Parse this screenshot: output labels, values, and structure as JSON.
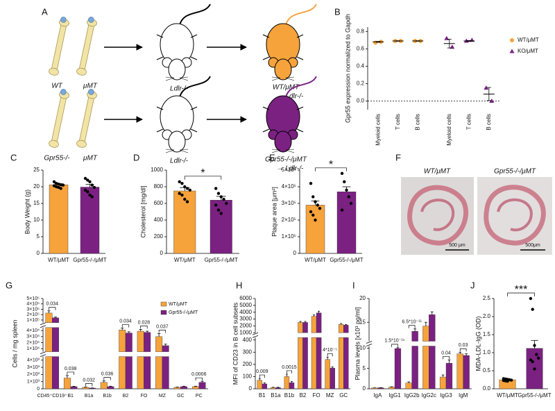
{
  "figure_a": {
    "panel": "A",
    "rows": [
      {
        "donors": [
          "WT",
          "μMT"
        ],
        "recipient": "Ldlr-/-",
        "chimera": "WT/μMT",
        "chimera_recipient": "→ Ldlr-/-",
        "chimera_color": "#f6a33c"
      },
      {
        "donors": [
          "Gpr55-/-",
          "μMT"
        ],
        "recipient": "Ldlr-/-",
        "chimera": "Gpr55-/-/μMT",
        "chimera_recipient": "→ Ldlr-/-",
        "chimera_color": "#7b2182"
      }
    ]
  },
  "figure_f": {
    "panel": "F",
    "images": [
      {
        "title": "WT/μMT",
        "scale_bar": "500 μm"
      },
      {
        "title": "Gpr55-/-/μMT",
        "scale_bar": "500μm"
      }
    ]
  },
  "chart_data": [
    {
      "type": "dot",
      "panel": "B",
      "ylabel": "Gpr55 expression normalized to Gapdh",
      "categories": [
        "Myeloid cells",
        "T cells",
        "B cells",
        "Myeloid cells",
        "T cells",
        "B cells"
      ],
      "ylim": [
        -0.1,
        0.85
      ],
      "yticks": [
        {
          "value": 0,
          "label": "0.0"
        },
        0.2,
        0.4,
        0.6,
        0.8
      ],
      "hline": 0,
      "series": [
        {
          "name": "WT/μMT",
          "color": "#f6a33c",
          "marker": "circle",
          "values": [
            0.68,
            0.69,
            0.69,
            null,
            null,
            null
          ],
          "errors": [
            0.005,
            0.003,
            0.003,
            null,
            null,
            null
          ],
          "points": [
            [
              0.67,
              0.68
            ],
            [
              0.69,
              0.69
            ],
            [
              0.69,
              0.69
            ],
            null,
            null,
            null
          ]
        },
        {
          "name": "KO/μMT",
          "color": "#7b2182",
          "marker": "triangle",
          "values": [
            null,
            null,
            null,
            0.66,
            0.69,
            0.08
          ],
          "errors": [
            null,
            null,
            null,
            0.05,
            0.005,
            0.075
          ],
          "points": [
            null,
            null,
            null,
            [
              0.72,
              0.62
            ],
            [
              0.69,
              0.7
            ],
            [
              0.15,
              0.0
            ]
          ]
        }
      ]
    },
    {
      "type": "bar",
      "panel": "C",
      "ylabel": "Body Weight (g)",
      "categories": [
        "WT/μMT",
        "Gpr55-/-/μMT"
      ],
      "colors": [
        "#f6a33c",
        "#7b2182"
      ],
      "values": [
        20.6,
        19.9
      ],
      "errors": [
        0.3,
        0.8
      ],
      "points": [
        [
          21.5,
          21.0,
          20.8,
          20.6,
          20.5,
          20.3,
          20.0,
          19.8,
          19.5
        ],
        [
          22.5,
          22.0,
          21.5,
          20.5,
          19.8,
          19.0,
          18.5,
          17.5,
          17.0
        ]
      ],
      "ylim": [
        0,
        25
      ],
      "yticks": [
        0,
        5,
        10,
        15,
        20,
        25
      ]
    },
    {
      "type": "bar",
      "panel": "D",
      "ylabel": "Cholesterol [mg/dl]",
      "categories": [
        "WT/μMT",
        "Gpr55-/-/μMT"
      ],
      "colors": [
        "#f6a33c",
        "#7b2182"
      ],
      "values": [
        750,
        640
      ],
      "errors": [
        40,
        45
      ],
      "points": [
        [
          860,
          840,
          800,
          780,
          760,
          720,
          700,
          650,
          620
        ],
        [
          780,
          720,
          680,
          650,
          600,
          580,
          520,
          480
        ]
      ],
      "ylim": [
        0,
        1000
      ],
      "yticks": [
        0,
        200,
        400,
        600,
        800,
        1000
      ],
      "significance": "*"
    },
    {
      "type": "bar",
      "panel": "E",
      "ylabel": "Plaque area [μm²]",
      "categories": [
        "WT/μMT",
        "Gpr55-/-/μMT"
      ],
      "colors": [
        "#f6a33c",
        "#7b2182"
      ],
      "values": [
        290000,
        370000
      ],
      "errors": [
        25000,
        30000
      ],
      "points": [
        [
          420000,
          340000,
          310000,
          290000,
          270000,
          250000,
          230000,
          200000
        ],
        [
          480000,
          430000,
          380000,
          340000,
          300000,
          260000
        ]
      ],
      "ylim": [
        0,
        500000
      ],
      "yticks": [
        0,
        {
          "value": 100000,
          "label": "1×10⁵"
        },
        {
          "value": 200000,
          "label": "2×10⁵"
        },
        {
          "value": 300000,
          "label": "3×10⁵"
        },
        {
          "value": 400000,
          "label": "4×10⁵"
        },
        {
          "value": 500000,
          "label": "5×10⁵"
        }
      ],
      "significance": "*"
    },
    {
      "type": "bar",
      "panel": "G",
      "ylabel": "Cells / mg spleen",
      "categories": [
        "CD45⁺CD19⁺",
        "B1",
        "B1a",
        "B1b",
        "B2",
        "FO",
        "MZ",
        "GC",
        "PC"
      ],
      "series": [
        {
          "name": "WT/μMT",
          "color": "#f6a33c",
          "values": [
            230000,
            1500,
            200,
            900,
            41000,
            39000,
            30000,
            200,
            300
          ],
          "errors": [
            40000,
            350,
            40,
            200,
            3000,
            3000,
            5000,
            40,
            60
          ]
        },
        {
          "name": "Gpr55-/-/μMT",
          "color": "#7b2182",
          "values": [
            140000,
            300,
            100,
            300,
            36000,
            37000,
            15000,
            300,
            900
          ],
          "errors": [
            15000,
            50,
            20,
            60,
            2000,
            2000,
            2500,
            60,
            150
          ]
        }
      ],
      "segments": [
        {
          "ylim": [
            0,
            4500
          ],
          "yticks": [
            0,
            {
              "value": 1000,
              "label": "1×10³"
            },
            {
              "value": 2000,
              "label": "2×10³"
            },
            {
              "value": 3000,
              "label": "3×10³"
            },
            {
              "value": 4000,
              "label": "4×10³"
            }
          ]
        },
        {
          "ylim": [
            5000,
            45000
          ],
          "yticks": [
            {
              "value": 10000,
              "label": "1×10⁴"
            },
            {
              "value": 20000,
              "label": "2×10⁴"
            },
            {
              "value": 30000,
              "label": "3×10⁴"
            },
            {
              "value": 40000,
              "label": "4×10⁴"
            }
          ]
        },
        {
          "ylim": [
            50000,
            500000
          ],
          "yticks": [
            {
              "value": 100000,
              "label": "1×10⁵"
            },
            {
              "value": 200000,
              "label": "2×10⁵"
            },
            {
              "value": 300000,
              "label": "3×10⁵"
            },
            {
              "value": 400000,
              "label": "4×10⁵"
            },
            {
              "value": 500000,
              "label": "5×10⁵"
            }
          ]
        }
      ],
      "p_values": [
        "0.034",
        "0.038",
        "0.032",
        "0.036",
        "0.034",
        "0.028",
        "0.037",
        null,
        "0.0006"
      ],
      "legend": "upper right"
    },
    {
      "type": "bar",
      "panel": "H",
      "ylabel": "MFI of CD23 in B cell subsets",
      "categories": [
        "B1",
        "B1a",
        "B1b",
        "B2",
        "FO",
        "MZ",
        "GC"
      ],
      "series": [
        {
          "name": "WT/μMT",
          "color": "#f6a33c",
          "values": [
            70,
            10,
            100,
            2500,
            3400,
            240,
            2200
          ],
          "errors": [
            15,
            3,
            20,
            150,
            200,
            20,
            150
          ]
        },
        {
          "name": "Gpr55-/-/μMT",
          "color": "#7b2182",
          "values": [
            40,
            10,
            50,
            2500,
            3900,
            170,
            2100
          ],
          "errors": [
            8,
            3,
            10,
            150,
            250,
            10,
            100
          ]
        }
      ],
      "segments": [
        {
          "ylim": [
            0,
            420
          ],
          "yticks": [
            0,
            100,
            200,
            300,
            400
          ]
        },
        {
          "ylim": [
            1000,
            6000
          ],
          "yticks": [
            1000,
            2000,
            3000,
            4000,
            5000,
            6000
          ]
        }
      ],
      "p_values": [
        "0.009",
        null,
        "0.0015",
        null,
        null,
        "4*10⁻⁵",
        null
      ]
    },
    {
      "type": "bar",
      "panel": "I",
      "ylabel": "Plasma levels [x10³ pg/ml]",
      "categories": [
        "IgA",
        "IgG1",
        "IgG2b",
        "IgG2c",
        "IgG3",
        "IgM"
      ],
      "series": [
        {
          "name": "WT/μMT",
          "color": "#f6a33c",
          "values": [
            0.2,
            0.4,
            1.4,
            14.2,
            2.9,
            8.6
          ],
          "errors": [
            0.03,
            0.1,
            0.3,
            0.8,
            0.5,
            0.4
          ]
        },
        {
          "name": "Gpr55-/-/μMT",
          "color": "#7b2182",
          "values": [
            0.25,
            9.9,
            13.1,
            16.6,
            6.3,
            8.2
          ],
          "errors": [
            0.03,
            0.2,
            0.5,
            0.6,
            0.8,
            0.4
          ]
        }
      ],
      "segments": [
        {
          "ylim": [
            0,
            10.5
          ],
          "yticks": [
            0,
            5,
            10
          ]
        },
        {
          "ylim": [
            11,
            20
          ],
          "yticks": [
            15,
            20
          ]
        }
      ],
      "p_values": [
        null,
        "1.5*10⁻¹⁵",
        "6.5*10⁻¹¹",
        null,
        "0.04",
        "0.03"
      ]
    },
    {
      "type": "bar",
      "panel": "J",
      "ylabel": "MDA-LDL-IgG (OD)",
      "categories": [
        "WT/μMT",
        "Gpr55-/-/μMT"
      ],
      "colors": [
        "#f6a33c",
        "#7b2182"
      ],
      "values": [
        0.25,
        1.12
      ],
      "errors": [
        0.02,
        0.22
      ],
      "points": [
        [
          0.28,
          0.27,
          0.26,
          0.25,
          0.24,
          0.23,
          0.22,
          0.21
        ],
        [
          2.5,
          2.2,
          1.2,
          0.95,
          0.85,
          0.8,
          0.75,
          0.55
        ]
      ],
      "ylim": [
        0,
        2.5
      ],
      "yticks": [
        {
          "value": 0,
          "label": "0.0"
        },
        0.5,
        {
          "value": 1,
          "label": "1.0"
        },
        1.5,
        {
          "value": 2,
          "label": "2.0"
        },
        2.5
      ],
      "significance": "***"
    }
  ]
}
